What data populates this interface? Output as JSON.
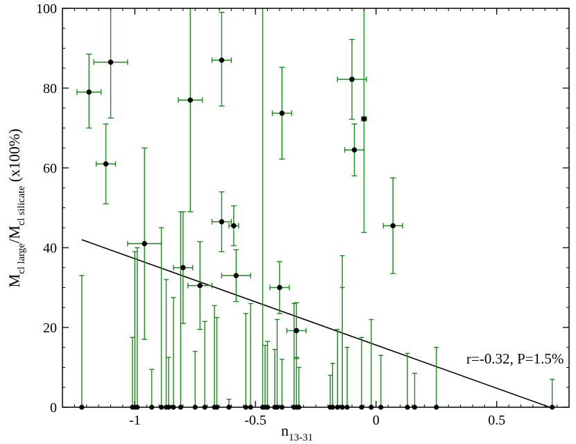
{
  "chart_data": {
    "type": "scatter",
    "title": "",
    "xlabel": {
      "main": "n",
      "sub": "13-31"
    },
    "ylabel": {
      "m1": "M",
      "s1": "cl large",
      "sep": "/M",
      "s2": "cl silicate",
      "tail": " (x100%)"
    },
    "xlim": [
      -1.3,
      0.8
    ],
    "ylim": [
      0,
      100
    ],
    "xticks": [
      -1,
      -0.5,
      0,
      0.5
    ],
    "xtick_labels": [
      "-1",
      "-0.5",
      "0",
      "0.5"
    ],
    "yticks": [
      0,
      20,
      40,
      60,
      80,
      100
    ],
    "ytick_labels": [
      "0",
      "20",
      "40",
      "60",
      "80",
      "100"
    ],
    "grid": false,
    "colors": {
      "errorbar": "#1a8a1a",
      "point": "#000000",
      "fit": "#000000"
    },
    "annotation": "r=-0.32, P=1.5%",
    "fit_line": {
      "x": [
        -1.22,
        0.72
      ],
      "y": [
        42.0,
        0.0
      ]
    },
    "points": [
      {
        "x": -1.19,
        "y": 79.0,
        "yerr": [
          9.5,
          9.0
        ],
        "xerr": 0.05
      },
      {
        "x": -1.1,
        "y": 86.5,
        "yerr": [
          24.5,
          14.0
        ],
        "xerr": 0.07
      },
      {
        "x": -1.12,
        "y": 61.0,
        "yerr": [
          10.0,
          10.0
        ],
        "xerr": 0.04
      },
      {
        "x": -0.96,
        "y": 41.0,
        "yerr": [
          24.0,
          24.0
        ],
        "xerr": 0.07
      },
      {
        "x": -0.77,
        "y": 77.0,
        "yerr": [
          28.0,
          28.0
        ],
        "xerr": 0.05
      },
      {
        "x": -0.8,
        "y": 35.0,
        "yerr": [
          14.0,
          14.0
        ],
        "xerr": 0.04
      },
      {
        "x": -0.73,
        "y": 30.5,
        "yerr": [
          11.0,
          11.0
        ],
        "xerr": 0.05
      },
      {
        "x": -0.64,
        "y": 87.0,
        "yerr": [
          12.0,
          11.5
        ],
        "xerr": 0.04
      },
      {
        "x": -0.64,
        "y": 46.5,
        "yerr": [
          7.5,
          7.5
        ],
        "xerr": 0.04
      },
      {
        "x": -0.59,
        "y": 45.5,
        "yerr": [
          5.0,
          5.0
        ],
        "xerr": 0.02
      },
      {
        "x": -0.58,
        "y": 33.0,
        "yerr": [
          6.5,
          6.5
        ],
        "xerr": 0.06
      },
      {
        "x": -0.39,
        "y": 73.7,
        "yerr": [
          11.5,
          11.5
        ],
        "xerr": 0.04
      },
      {
        "x": -0.4,
        "y": 30.0,
        "yerr": [
          6.5,
          6.5
        ],
        "xerr": 0.04
      },
      {
        "x": -0.33,
        "y": 19.2,
        "yerr": [
          7.0,
          7.0
        ],
        "xerr": 0.04
      },
      {
        "x": -0.1,
        "y": 82.2,
        "yerr": [
          10.0,
          10.0
        ],
        "xerr": 0.06
      },
      {
        "x": -0.09,
        "y": 64.5,
        "yerr": [
          6.5,
          6.5
        ],
        "xerr": 0.04
      },
      {
        "x": -0.05,
        "y": 72.3,
        "yerr": [
          28.5,
          28.5
        ],
        "xerr": 0.01
      },
      {
        "x": 0.07,
        "y": 45.5,
        "yerr": [
          12.0,
          12.0
        ],
        "xerr": 0.04
      }
    ],
    "zero_points": [
      {
        "x": -1.22,
        "up": 33
      },
      {
        "x": -1.01,
        "up": 17.5
      },
      {
        "x": -1.0,
        "up": 39
      },
      {
        "x": -0.99,
        "up": 40
      },
      {
        "x": -0.93,
        "up": 9.5
      },
      {
        "x": -0.89,
        "up": 45
      },
      {
        "x": -0.87,
        "up": 32
      },
      {
        "x": -0.86,
        "up": 12.5
      },
      {
        "x": -0.84,
        "up": 27.5
      },
      {
        "x": -0.81,
        "up": 49
      },
      {
        "x": -0.75,
        "up": 14
      },
      {
        "x": -0.71,
        "up": 21.5
      },
      {
        "x": -0.67,
        "up": 25.5
      },
      {
        "x": -0.66,
        "up": 22.5
      },
      {
        "x": -0.61,
        "up": 2
      },
      {
        "x": -0.54,
        "up": 23.5
      },
      {
        "x": -0.52,
        "up": 26
      },
      {
        "x": -0.47,
        "up": 100
      },
      {
        "x": -0.46,
        "up": 15.5
      },
      {
        "x": -0.45,
        "up": 16.5
      },
      {
        "x": -0.42,
        "up": 14.5
      },
      {
        "x": -0.41,
        "up": 22
      },
      {
        "x": -0.39,
        "up": 12
      },
      {
        "x": -0.34,
        "up": 26
      },
      {
        "x": -0.33,
        "up": 12.5
      },
      {
        "x": -0.32,
        "up": 10
      },
      {
        "x": -0.19,
        "up": 8
      },
      {
        "x": -0.18,
        "up": 11
      },
      {
        "x": -0.16,
        "up": 19.5
      },
      {
        "x": -0.14,
        "up": 38
      },
      {
        "x": -0.14,
        "up": 30
      },
      {
        "x": -0.12,
        "up": 15
      },
      {
        "x": -0.06,
        "up": 17.5
      },
      {
        "x": -0.02,
        "up": 22
      },
      {
        "x": 0.02,
        "up": 13
      },
      {
        "x": 0.13,
        "up": 13.5
      },
      {
        "x": 0.16,
        "up": 8.5
      },
      {
        "x": 0.25,
        "up": 15
      },
      {
        "x": 0.73,
        "up": 7
      }
    ]
  }
}
